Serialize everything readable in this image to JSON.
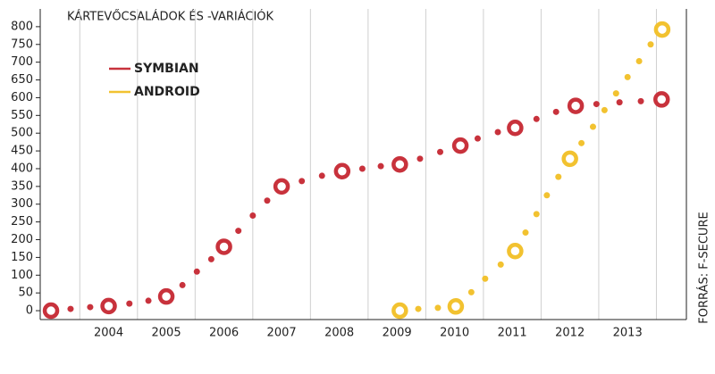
{
  "chart_data": {
    "type": "scatter",
    "title": "KÁRTEVŐCSALÁDOK ÉS -VARIÁCIÓK",
    "source": "FORRÁS: F-SECURE",
    "xlim": [
      2002.86,
      2014.02
    ],
    "xticks": [
      2004,
      2005,
      2006,
      2007,
      2008,
      2009,
      2010,
      2011,
      2012,
      2013
    ],
    "xgrid": [
      2003.5,
      2004.5,
      2005.5,
      2006.5,
      2007.5,
      2008.5,
      2009.5,
      2010.5,
      2011.5,
      2012.5,
      2013.5
    ],
    "ylim": [
      -25,
      850
    ],
    "yticks": [
      0,
      50,
      100,
      150,
      200,
      250,
      300,
      350,
      400,
      450,
      500,
      550,
      600,
      650,
      700,
      750,
      800
    ],
    "series": [
      {
        "name": "SYMBIAN",
        "color": "#c8323c",
        "x": [
          2003.0,
          2003.34,
          2003.68,
          2004.0,
          2004.36,
          2004.69,
          2005.0,
          2005.28,
          2005.53,
          2005.78,
          2006.0,
          2006.25,
          2006.5,
          2006.75,
          2007.0,
          2007.35,
          2007.7,
          2008.05,
          2008.4,
          2008.72,
          2009.05,
          2009.4,
          2009.75,
          2010.1,
          2010.4,
          2010.75,
          2011.05,
          2011.42,
          2011.76,
          2012.1,
          2012.46,
          2012.86,
          2013.23,
          2013.59
        ],
        "values": [
          0,
          5,
          10,
          13,
          20,
          28,
          40,
          72,
          110,
          145,
          180,
          225,
          268,
          310,
          350,
          365,
          380,
          393,
          400,
          407,
          412,
          428,
          447,
          465,
          485,
          503,
          515,
          540,
          560,
          577,
          582,
          587,
          590,
          595
        ],
        "markers": [
          "ring",
          "dot",
          "dot",
          "ring",
          "dot",
          "dot",
          "ring",
          "dot",
          "dot",
          "dot",
          "ring",
          "dot",
          "dot",
          "dot",
          "ring",
          "dot",
          "dot",
          "ring",
          "dot",
          "dot",
          "ring",
          "dot",
          "dot",
          "ring",
          "dot",
          "dot",
          "ring",
          "dot",
          "dot",
          "ring",
          "dot",
          "dot",
          "dot",
          "ring"
        ]
      },
      {
        "name": "ANDROID",
        "color": "#f2c230",
        "x": [
          2009.05,
          2009.37,
          2009.71,
          2010.02,
          2010.29,
          2010.53,
          2010.8,
          2011.05,
          2011.23,
          2011.42,
          2011.6,
          2011.8,
          2012.0,
          2012.2,
          2012.4,
          2012.6,
          2012.8,
          2013.0,
          2013.2,
          2013.4,
          2013.6
        ],
        "values": [
          0,
          5,
          8,
          12,
          52,
          90,
          130,
          168,
          220,
          272,
          325,
          377,
          428,
          472,
          518,
          565,
          612,
          658,
          703,
          750,
          792
        ],
        "markers": [
          "ring",
          "dot",
          "dot",
          "ring",
          "dot",
          "dot",
          "dot",
          "ring",
          "dot",
          "dot",
          "dot",
          "dot",
          "ring",
          "dot",
          "dot",
          "dot",
          "dot",
          "dot",
          "dot",
          "dot",
          "ring"
        ]
      }
    ]
  }
}
